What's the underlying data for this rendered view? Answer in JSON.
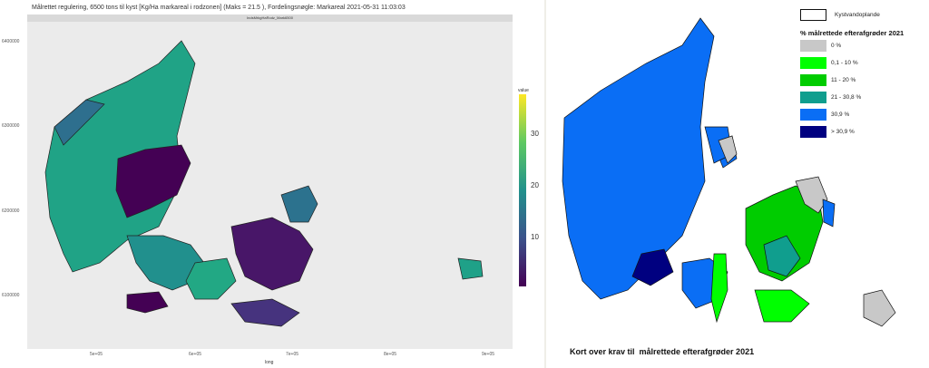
{
  "left_map": {
    "title": "Målrettet regulering, 6500 tons til kyst [Kg/Ha markareal i rodzonen] (Maks = 21.5 ), Fordelingsnøgle: Markareal 2021-05-31 11:03:03",
    "panel_label": "IndsMrkgHaRodz_Mark6500",
    "x_axis_label": "long",
    "x_ticks": [
      "5e+05",
      "6e+05",
      "7e+05",
      "8e+05",
      "9e+05"
    ],
    "y_ticks": [
      "6400000",
      "6300000",
      "6200000",
      "6100000"
    ],
    "colorbar": {
      "title": "value",
      "ticks": [
        "30",
        "20",
        "10"
      ],
      "range": [
        0,
        38
      ],
      "palette": [
        "#440154",
        "#3b528b",
        "#21918c",
        "#5ec962",
        "#fde725"
      ]
    }
  },
  "right_map": {
    "legend": {
      "outline_label": "Kystvandoplande",
      "title": "% målrettede efterafgrøder 2021",
      "items": [
        {
          "label": "0 %",
          "color": "#c8c8c8"
        },
        {
          "label": "0,1 - 10 %",
          "color": "#00ff00"
        },
        {
          "label": "11 - 20 %",
          "color": "#00cc00"
        },
        {
          "label": "21 - 30,8 %",
          "color": "#109e8e"
        },
        {
          "label": "30,9 %",
          "color": "#0a6ef5"
        },
        {
          "label": "> 30,9 %",
          "color": "#000080"
        }
      ]
    },
    "caption": "Kort over krav til  målrettede efterafgrøder 2021"
  }
}
